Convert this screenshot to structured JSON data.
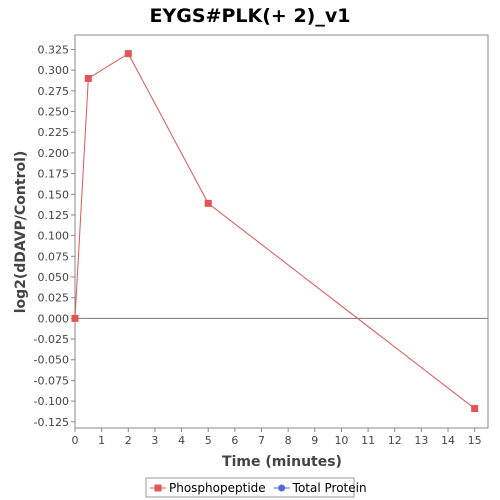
{
  "chart_data": {
    "type": "line",
    "title": "EYGS#PLK(+ 2)_v1",
    "xlabel": "Time (minutes)",
    "ylabel": "log2(dDAVP/Control)",
    "xlim": [
      0,
      15.5
    ],
    "ylim": [
      -0.1325,
      0.3425
    ],
    "xticks": [
      0,
      1,
      2,
      3,
      4,
      5,
      6,
      7,
      8,
      9,
      10,
      11,
      12,
      13,
      14,
      15
    ],
    "xtick_labels": [
      "0",
      "1",
      "2",
      "3",
      "4",
      "5",
      "6",
      "7",
      "8",
      "9",
      "10",
      "11",
      "12",
      "13",
      "14",
      "15"
    ],
    "yticks": [
      0.325,
      0.3,
      0.275,
      0.25,
      0.225,
      0.2,
      0.175,
      0.15,
      0.125,
      0.1,
      0.075,
      0.05,
      0.025,
      0.0,
      -0.025,
      -0.05,
      -0.075,
      -0.1,
      -0.125
    ],
    "ytick_labels": [
      "0.325",
      "0.300",
      "0.275",
      "0.250",
      "0.225",
      "0.200",
      "0.175",
      "0.150",
      "0.125",
      "0.100",
      "0.075",
      "0.050",
      "0.025",
      "0.000",
      "-0.025",
      "-0.050",
      "-0.075",
      "-0.100",
      "-0.125"
    ],
    "grid": false,
    "zero_line": true,
    "legend_position": "bottom",
    "series": [
      {
        "name": "Phosphopeptide",
        "color": "#e05555",
        "marker": "square",
        "x": [
          0,
          0.5,
          2,
          5,
          15
        ],
        "y": [
          0.0,
          0.29,
          0.32,
          0.139,
          -0.109
        ]
      },
      {
        "name": "Total Protein",
        "color": "#5566dd",
        "marker": "circle",
        "x": [],
        "y": []
      }
    ]
  }
}
